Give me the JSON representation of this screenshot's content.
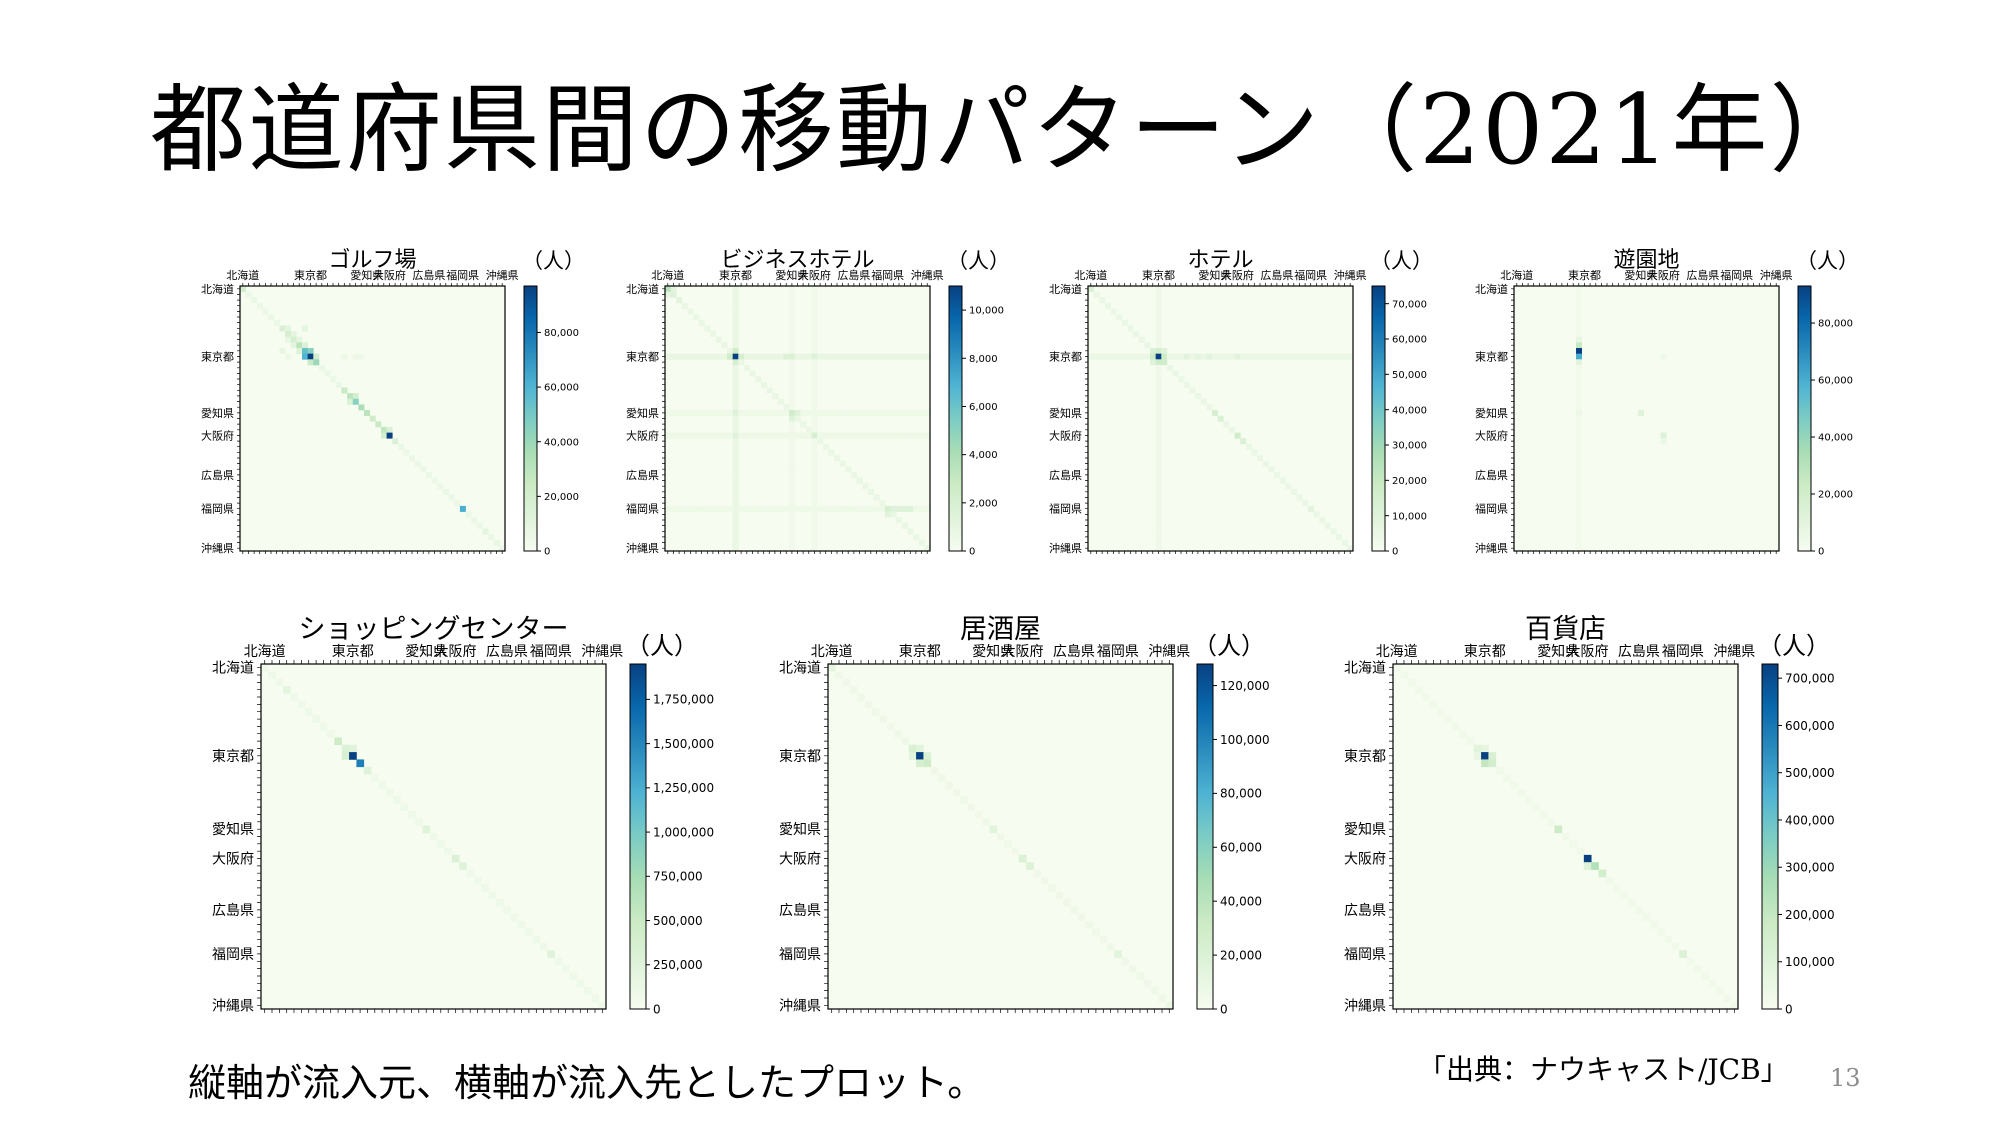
{
  "slide": {
    "title": "都道府県間の移動パターン（2021年）",
    "footnote": "縦軸が流入元、横軸が流入先としたプロット。",
    "source": "「出典：ナウキャスト/JCB」",
    "page_number": "13"
  },
  "colors": {
    "cmap": [
      "#f7fcf0",
      "#e0f3db",
      "#ccebc5",
      "#a8ddb5",
      "#7bccc4",
      "#4eb3d3",
      "#2b8cbe",
      "#0868ac",
      "#084081"
    ],
    "axis": "#000000",
    "text": "#000000",
    "page_number": "#8c8c8c"
  },
  "chart_data": [
    {
      "type": "heatmap",
      "title": "ゴルフ場",
      "unit": "（人）",
      "x_tick_labels": [
        "北海道",
        "東京都",
        "愛知県",
        "大阪府",
        "広島県",
        "福岡県",
        "沖縄県"
      ],
      "y_tick_labels": [
        "北海道",
        "東京都",
        "愛知県",
        "大阪府",
        "広島県",
        "福岡県",
        "沖縄県"
      ],
      "tick_indices": [
        1,
        13,
        23,
        27,
        34,
        40,
        47
      ],
      "n": 47,
      "vmax": 97000,
      "colorbar_ticks": [
        0,
        20000,
        40000,
        60000,
        80000
      ],
      "colorbar_labels": [
        "0",
        "20,000",
        "40,000",
        "60,000",
        "80,000"
      ],
      "diagonal_base": 6000,
      "cells": [
        [
          1,
          1,
          20000
        ],
        [
          8,
          8,
          16000
        ],
        [
          8,
          9,
          10000
        ],
        [
          9,
          9,
          18000
        ],
        [
          9,
          10,
          9000
        ],
        [
          10,
          9,
          8000
        ],
        [
          10,
          10,
          18000
        ],
        [
          10,
          11,
          9000
        ],
        [
          11,
          10,
          10000
        ],
        [
          11,
          11,
          30000
        ],
        [
          11,
          12,
          15000
        ],
        [
          12,
          11,
          14000
        ],
        [
          12,
          12,
          55000
        ],
        [
          12,
          13,
          45000
        ],
        [
          13,
          12,
          60000
        ],
        [
          13,
          13,
          97000
        ],
        [
          13,
          14,
          20000
        ],
        [
          14,
          13,
          25000
        ],
        [
          14,
          14,
          40000
        ],
        [
          12,
          8,
          8000
        ],
        [
          13,
          9,
          6000
        ],
        [
          8,
          12,
          9000
        ],
        [
          19,
          19,
          25000
        ],
        [
          20,
          20,
          30000
        ],
        [
          20,
          21,
          20000
        ],
        [
          21,
          20,
          15000
        ],
        [
          21,
          21,
          45000
        ],
        [
          22,
          22,
          35000
        ],
        [
          23,
          23,
          30000
        ],
        [
          24,
          24,
          22000
        ],
        [
          25,
          25,
          25000
        ],
        [
          26,
          26,
          28000
        ],
        [
          26,
          27,
          15000
        ],
        [
          27,
          26,
          20000
        ],
        [
          27,
          27,
          97000
        ],
        [
          28,
          28,
          15000
        ],
        [
          13,
          19,
          5000
        ],
        [
          13,
          21,
          5000
        ],
        [
          13,
          22,
          4000
        ],
        [
          40,
          40,
          62000
        ],
        [
          44,
          44,
          10000
        ],
        [
          46,
          46,
          8000
        ]
      ]
    },
    {
      "type": "heatmap",
      "title": "ビジネスホテル",
      "unit": "（人）",
      "x_tick_labels": [
        "北海道",
        "東京都",
        "愛知県",
        "大阪府",
        "広島県",
        "福岡県",
        "沖縄県"
      ],
      "y_tick_labels": [
        "北海道",
        "東京都",
        "愛知県",
        "大阪府",
        "広島県",
        "福岡県",
        "沖縄県"
      ],
      "tick_indices": [
        1,
        13,
        23,
        27,
        34,
        40,
        47
      ],
      "n": 47,
      "vmax": 11000,
      "colorbar_ticks": [
        0,
        2000,
        4000,
        6000,
        8000,
        10000
      ],
      "colorbar_labels": [
        "0",
        "2,000",
        "4,000",
        "6,000",
        "8,000",
        "10,000"
      ],
      "diagonal_base": 800,
      "row_bands": [
        [
          13,
          900
        ],
        [
          23,
          500
        ],
        [
          27,
          600
        ],
        [
          40,
          500
        ]
      ],
      "col_bands": [
        [
          13,
          700
        ],
        [
          23,
          400
        ],
        [
          27,
          400
        ]
      ],
      "cells": [
        [
          1,
          1,
          3500
        ],
        [
          1,
          2,
          1200
        ],
        [
          2,
          1,
          1000
        ],
        [
          2,
          2,
          1500
        ],
        [
          3,
          3,
          1200
        ],
        [
          13,
          13,
          11000
        ],
        [
          12,
          13,
          2500
        ],
        [
          13,
          12,
          2500
        ],
        [
          13,
          14,
          2000
        ],
        [
          14,
          13,
          2000
        ],
        [
          13,
          23,
          1800
        ],
        [
          13,
          22,
          1600
        ],
        [
          13,
          27,
          1500
        ],
        [
          23,
          23,
          2500
        ],
        [
          23,
          24,
          1500
        ],
        [
          24,
          23,
          1500
        ],
        [
          27,
          27,
          2000
        ],
        [
          40,
          40,
          2000
        ],
        [
          40,
          41,
          1500
        ],
        [
          40,
          42,
          1500
        ],
        [
          40,
          43,
          1500
        ],
        [
          40,
          44,
          1500
        ],
        [
          41,
          40,
          1200
        ],
        [
          23,
          13,
          1500
        ],
        [
          27,
          13,
          1500
        ]
      ]
    },
    {
      "type": "heatmap",
      "title": "ホテル",
      "unit": "（人）",
      "x_tick_labels": [
        "北海道",
        "東京都",
        "愛知県",
        "大阪府",
        "広島県",
        "福岡県",
        "沖縄県"
      ],
      "y_tick_labels": [
        "北海道",
        "東京都",
        "愛知県",
        "大阪府",
        "広島県",
        "福岡県",
        "沖縄県"
      ],
      "tick_indices": [
        1,
        13,
        23,
        27,
        34,
        40,
        47
      ],
      "n": 47,
      "vmax": 75000,
      "colorbar_ticks": [
        0,
        10000,
        20000,
        30000,
        40000,
        50000,
        60000,
        70000
      ],
      "colorbar_labels": [
        "0",
        "10,000",
        "20,000",
        "30,000",
        "40,000",
        "50,000",
        "60,000",
        "70,000"
      ],
      "diagonal_base": 5000,
      "row_bands": [
        [
          13,
          5000
        ]
      ],
      "col_bands": [
        [
          13,
          3000
        ]
      ],
      "cells": [
        [
          1,
          1,
          12000
        ],
        [
          13,
          13,
          75000
        ],
        [
          13,
          12,
          18000
        ],
        [
          12,
          13,
          15000
        ],
        [
          13,
          14,
          18000
        ],
        [
          14,
          13,
          18000
        ],
        [
          14,
          14,
          16000
        ],
        [
          12,
          12,
          12000
        ],
        [
          14,
          12,
          10000
        ],
        [
          12,
          14,
          10000
        ],
        [
          13,
          18,
          9000
        ],
        [
          13,
          20,
          8000
        ],
        [
          13,
          22,
          8000
        ],
        [
          13,
          27,
          9000
        ],
        [
          23,
          23,
          14000
        ],
        [
          24,
          24,
          12000
        ],
        [
          27,
          27,
          18000
        ],
        [
          28,
          28,
          12000
        ],
        [
          40,
          40,
          8000
        ],
        [
          47,
          47,
          6000
        ]
      ]
    },
    {
      "type": "heatmap",
      "title": "遊園地",
      "unit": "（人）",
      "x_tick_labels": [
        "北海道",
        "東京都",
        "愛知県",
        "大阪府",
        "広島県",
        "福岡県",
        "沖縄県"
      ],
      "y_tick_labels": [
        "北海道",
        "東京都",
        "愛知県",
        "大阪府",
        "広島県",
        "福岡県",
        "沖縄県"
      ],
      "tick_indices": [
        1,
        13,
        23,
        27,
        34,
        40,
        47
      ],
      "n": 47,
      "vmax": 93000,
      "colorbar_ticks": [
        0,
        20000,
        40000,
        60000,
        80000
      ],
      "colorbar_labels": [
        "0",
        "20,000",
        "40,000",
        "60,000",
        "80,000"
      ],
      "diagonal_base": 0,
      "col_bands": [
        [
          12,
          3000
        ]
      ],
      "cells": [
        [
          11,
          12,
          25000
        ],
        [
          12,
          12,
          93000
        ],
        [
          13,
          12,
          60000
        ],
        [
          14,
          12,
          10000
        ],
        [
          10,
          12,
          8000
        ],
        [
          23,
          12,
          5000
        ],
        [
          23,
          23,
          12000
        ],
        [
          27,
          27,
          14000
        ],
        [
          28,
          27,
          6000
        ],
        [
          13,
          27,
          4000
        ]
      ]
    },
    {
      "type": "heatmap",
      "title": "ショッピングセンター",
      "unit": "（人）",
      "x_tick_labels": [
        "北海道",
        "東京都",
        "愛知県",
        "大阪府",
        "広島県",
        "福岡県",
        "沖縄県"
      ],
      "y_tick_labels": [
        "北海道",
        "東京都",
        "愛知県",
        "大阪府",
        "広島県",
        "福岡県",
        "沖縄県"
      ],
      "tick_indices": [
        1,
        13,
        23,
        27,
        34,
        40,
        47
      ],
      "n": 47,
      "vmax": 1950000,
      "colorbar_ticks": [
        0,
        250000,
        500000,
        750000,
        1000000,
        1250000,
        1500000,
        1750000
      ],
      "colorbar_labels": [
        "0",
        "250,000",
        "500,000",
        "750,000",
        "1,000,000",
        "1,250,000",
        "1,500,000",
        "1,750,000"
      ],
      "diagonal_base": 80000,
      "cells": [
        [
          4,
          4,
          200000
        ],
        [
          11,
          11,
          450000
        ],
        [
          12,
          12,
          300000
        ],
        [
          12,
          13,
          250000
        ],
        [
          13,
          12,
          350000
        ],
        [
          13,
          13,
          1950000
        ],
        [
          14,
          14,
          1550000
        ],
        [
          15,
          15,
          250000
        ],
        [
          23,
          23,
          250000
        ],
        [
          27,
          27,
          300000
        ],
        [
          28,
          28,
          250000
        ],
        [
          40,
          40,
          250000
        ]
      ]
    },
    {
      "type": "heatmap",
      "title": "居酒屋",
      "unit": "（人）",
      "x_tick_labels": [
        "北海道",
        "東京都",
        "愛知県",
        "大阪府",
        "広島県",
        "福岡県",
        "沖縄県"
      ],
      "y_tick_labels": [
        "北海道",
        "東京都",
        "愛知県",
        "大阪府",
        "広島県",
        "福岡県",
        "沖縄県"
      ],
      "tick_indices": [
        1,
        13,
        23,
        27,
        34,
        40,
        47
      ],
      "n": 47,
      "vmax": 128000,
      "colorbar_ticks": [
        0,
        20000,
        40000,
        60000,
        80000,
        100000,
        120000
      ],
      "colorbar_labels": [
        "0",
        "20,000",
        "40,000",
        "60,000",
        "80,000",
        "100,000",
        "120,000"
      ],
      "diagonal_base": 5000,
      "cells": [
        [
          1,
          1,
          12000
        ],
        [
          12,
          12,
          22000
        ],
        [
          12,
          13,
          15000
        ],
        [
          13,
          12,
          15000
        ],
        [
          13,
          13,
          128000
        ],
        [
          14,
          13,
          25000
        ],
        [
          13,
          14,
          20000
        ],
        [
          14,
          14,
          30000
        ],
        [
          23,
          23,
          15000
        ],
        [
          27,
          27,
          20000
        ],
        [
          28,
          28,
          18000
        ],
        [
          40,
          40,
          15000
        ],
        [
          47,
          47,
          8000
        ]
      ]
    },
    {
      "type": "heatmap",
      "title": "百貨店",
      "unit": "（人）",
      "x_tick_labels": [
        "北海道",
        "東京都",
        "愛知県",
        "大阪府",
        "広島県",
        "福岡県",
        "沖縄県"
      ],
      "y_tick_labels": [
        "北海道",
        "東京都",
        "愛知県",
        "大阪府",
        "広島県",
        "福岡県",
        "沖縄県"
      ],
      "tick_indices": [
        1,
        13,
        23,
        27,
        34,
        40,
        47
      ],
      "n": 47,
      "vmax": 730000,
      "colorbar_ticks": [
        0,
        100000,
        200000,
        300000,
        400000,
        500000,
        600000,
        700000
      ],
      "colorbar_labels": [
        "0",
        "100,000",
        "200,000",
        "300,000",
        "400,000",
        "500,000",
        "600,000",
        "700,000"
      ],
      "diagonal_base": 25000,
      "cells": [
        [
          12,
          12,
          90000
        ],
        [
          12,
          13,
          70000
        ],
        [
          13,
          12,
          60000
        ],
        [
          13,
          13,
          730000
        ],
        [
          14,
          13,
          200000
        ],
        [
          14,
          14,
          150000
        ],
        [
          13,
          14,
          120000
        ],
        [
          23,
          23,
          180000
        ],
        [
          27,
          27,
          730000
        ],
        [
          28,
          28,
          250000
        ],
        [
          28,
          27,
          100000
        ],
        [
          29,
          29,
          150000
        ],
        [
          40,
          40,
          110000
        ],
        [
          47,
          47,
          30000
        ]
      ]
    }
  ]
}
